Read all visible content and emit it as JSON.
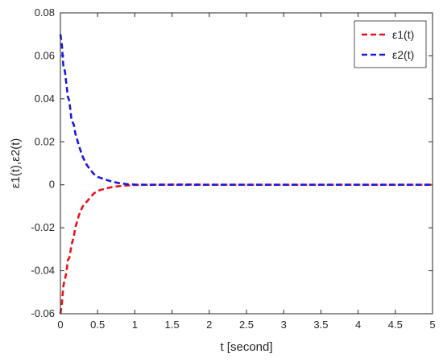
{
  "chart_data": {
    "type": "line",
    "xlabel": "t  [second]",
    "ylabel": "ε1(t),ε2(t)",
    "xlim": [
      0,
      5
    ],
    "ylim": [
      -0.06,
      0.08
    ],
    "grid": false,
    "legend_position": "top-right",
    "x_ticks": [
      {
        "value": 0,
        "label": "0"
      },
      {
        "value": 0.5,
        "label": "0.5"
      },
      {
        "value": 1,
        "label": "1"
      },
      {
        "value": 1.5,
        "label": "1.5"
      },
      {
        "value": 2,
        "label": "2"
      },
      {
        "value": 2.5,
        "label": "2.5"
      },
      {
        "value": 3,
        "label": "3"
      },
      {
        "value": 3.5,
        "label": "3.5"
      },
      {
        "value": 4,
        "label": "4"
      },
      {
        "value": 4.5,
        "label": "4.5"
      },
      {
        "value": 5,
        "label": "5"
      }
    ],
    "y_ticks": [
      {
        "value": -0.06,
        "label": "-0.06"
      },
      {
        "value": -0.04,
        "label": "-0.04"
      },
      {
        "value": -0.02,
        "label": "-0.02"
      },
      {
        "value": 0,
        "label": "0"
      },
      {
        "value": 0.02,
        "label": "0.02"
      },
      {
        "value": 0.04,
        "label": "0.04"
      },
      {
        "value": 0.06,
        "label": "0.06"
      },
      {
        "value": 0.08,
        "label": "0.08"
      }
    ],
    "series": [
      {
        "name": "ε1(t)",
        "color": "#e8141a",
        "points": [
          [
            0,
            -0.06
          ],
          [
            0.02,
            -0.055
          ],
          [
            0.04,
            -0.047
          ],
          [
            0.06,
            -0.044
          ],
          [
            0.08,
            -0.041
          ],
          [
            0.1,
            -0.035
          ],
          [
            0.12,
            -0.034
          ],
          [
            0.15,
            -0.028
          ],
          [
            0.18,
            -0.024
          ],
          [
            0.2,
            -0.02
          ],
          [
            0.25,
            -0.014
          ],
          [
            0.3,
            -0.01
          ],
          [
            0.35,
            -0.008
          ],
          [
            0.4,
            -0.006
          ],
          [
            0.45,
            -0.004
          ],
          [
            0.5,
            -0.0028
          ],
          [
            0.6,
            -0.0018
          ],
          [
            0.7,
            -0.001
          ],
          [
            0.8,
            -0.0006
          ],
          [
            0.9,
            -0.0003
          ],
          [
            1.0,
            -0.0001
          ],
          [
            1.2,
            0.0
          ],
          [
            1.5,
            0.0001
          ],
          [
            1.8,
            0.0001
          ],
          [
            2.0,
            0.0
          ],
          [
            2.5,
            0.0
          ],
          [
            3.0,
            0.0
          ],
          [
            3.5,
            0.0
          ],
          [
            4.0,
            0.0
          ],
          [
            4.5,
            0.0
          ],
          [
            5.0,
            0.0
          ]
        ]
      },
      {
        "name": "ε2(t)",
        "color": "#1a1adc",
        "points": [
          [
            0,
            0.07
          ],
          [
            0.02,
            0.065
          ],
          [
            0.04,
            0.055
          ],
          [
            0.06,
            0.053
          ],
          [
            0.08,
            0.047
          ],
          [
            0.1,
            0.041
          ],
          [
            0.12,
            0.039
          ],
          [
            0.15,
            0.03
          ],
          [
            0.18,
            0.028
          ],
          [
            0.2,
            0.024
          ],
          [
            0.25,
            0.018
          ],
          [
            0.3,
            0.013
          ],
          [
            0.35,
            0.0095
          ],
          [
            0.4,
            0.007
          ],
          [
            0.45,
            0.005
          ],
          [
            0.5,
            0.0037
          ],
          [
            0.6,
            0.0025
          ],
          [
            0.7,
            0.0014
          ],
          [
            0.8,
            0.0007
          ],
          [
            0.9,
            0.0003
          ],
          [
            1.0,
            0.0001
          ],
          [
            1.2,
            0.0
          ],
          [
            1.5,
            0.0
          ],
          [
            2.0,
            0.0
          ],
          [
            2.5,
            0.0
          ],
          [
            3.0,
            0.0
          ],
          [
            3.5,
            0.0
          ],
          [
            4.0,
            0.0
          ],
          [
            4.5,
            0.0
          ],
          [
            5.0,
            0.0
          ]
        ]
      }
    ]
  }
}
